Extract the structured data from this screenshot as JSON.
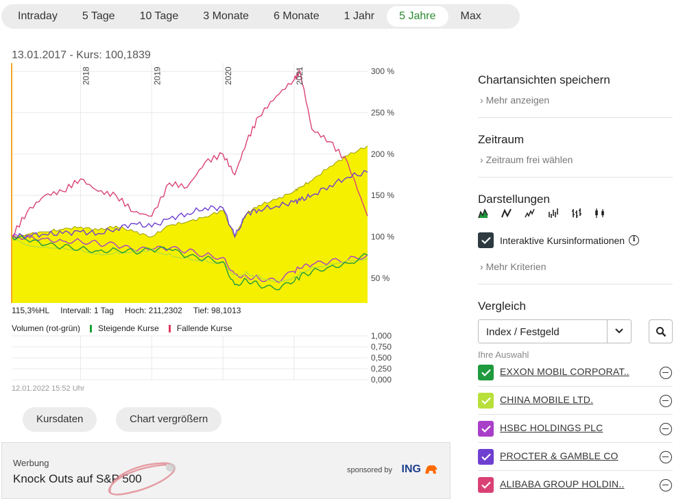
{
  "tabs": [
    {
      "label": "Intraday"
    },
    {
      "label": "5 Tage"
    },
    {
      "label": "10 Tage"
    },
    {
      "label": "3 Monate"
    },
    {
      "label": "6 Monate"
    },
    {
      "label": "1 Jahr"
    },
    {
      "label": "5 Jahre",
      "active": true
    },
    {
      "label": "Max"
    }
  ],
  "chart": {
    "header": "13.01.2017  -  Kurs: 100,1839",
    "stats": {
      "hl": "115,3%HL",
      "intervall": "Intervall: 1 Tag",
      "hoch": "Hoch: 211,2302",
      "tief": "Tief: 98,1013"
    },
    "volume_legend": {
      "label": "Volumen (rot-grün)",
      "rising": "Steigende Kurse",
      "falling": "Fallende Kurse",
      "rising_color": "#19a035",
      "falling_color": "#e0395a"
    },
    "timestamp": "12.01.2022 15:52 Uhr"
  },
  "chart_data": [
    {
      "type": "line",
      "years": [
        "2018",
        "2019",
        "2020",
        "2021"
      ],
      "y_ticks": [
        "300 %",
        "250 %",
        "200 %",
        "150 %",
        "100 %",
        "50 %"
      ],
      "ylim": [
        20,
        310
      ],
      "x": [
        "2017-01-13",
        "2017-04",
        "2017-07",
        "2017-10",
        "2018-01",
        "2018-04",
        "2018-07",
        "2018-10",
        "2019-01",
        "2019-04",
        "2019-07",
        "2019-10",
        "2020-01",
        "2020-03",
        "2020-05",
        "2020-07",
        "2020-10",
        "2021-01",
        "2021-02",
        "2021-04",
        "2021-07",
        "2021-10",
        "2022-01-12"
      ],
      "series": [
        {
          "color": "#f5f000",
          "values": [
            100,
            103,
            106,
            109,
            112,
            108,
            113,
            106,
            100,
            114,
            118,
            124,
            132,
            100,
            128,
            138,
            145,
            155,
            160,
            168,
            185,
            198,
            210
          ],
          "fill": true
        },
        {
          "color": "#d94175",
          "values": [
            100,
            130,
            150,
            155,
            170,
            155,
            150,
            130,
            125,
            165,
            160,
            190,
            200,
            175,
            215,
            245,
            270,
            290,
            300,
            230,
            215,
            190,
            125
          ]
        },
        {
          "color": "#6e3fd1",
          "values": [
            100,
            102,
            103,
            104,
            106,
            104,
            110,
            116,
            112,
            122,
            128,
            135,
            135,
            100,
            128,
            133,
            137,
            142,
            144,
            150,
            162,
            172,
            178
          ]
        },
        {
          "color": "#a93fc8",
          "values": [
            100,
            100,
            98,
            95,
            95,
            92,
            90,
            84,
            85,
            86,
            83,
            78,
            75,
            55,
            52,
            50,
            46,
            58,
            62,
            66,
            70,
            72,
            78
          ]
        },
        {
          "color": "#b8e03a",
          "values": [
            100,
            90,
            88,
            87,
            85,
            80,
            82,
            84,
            86,
            80,
            76,
            73,
            70,
            55,
            58,
            54,
            48,
            52,
            58,
            64,
            68,
            72,
            74
          ]
        },
        {
          "color": "#1f9a3e",
          "values": [
            100,
            96,
            90,
            88,
            86,
            83,
            85,
            82,
            84,
            85,
            76,
            74,
            70,
            42,
            48,
            42,
            36,
            46,
            52,
            58,
            64,
            68,
            78
          ]
        }
      ]
    },
    {
      "type": "bar",
      "y_ticks": [
        "1,000",
        "0,750",
        "0,500",
        "0,250",
        "0,000"
      ],
      "ylim": [
        0,
        1
      ],
      "values": []
    }
  ],
  "buttons": {
    "kursdaten": "Kursdaten",
    "vergroessern": "Chart vergrößern"
  },
  "ad": {
    "label": "Werbung",
    "title": "Knock Outs auf S&P 500",
    "sponsor": "sponsored by",
    "brand": "ING"
  },
  "panel": {
    "speichern_title": "Chartansichten speichern",
    "speichern_link": "Mehr anzeigen",
    "zeitraum_title": "Zeitraum",
    "zeitraum_link": "Zeitraum frei wählen",
    "darstellungen_title": "Darstellungen",
    "interaktiv_label": "Interaktive Kursinformationen",
    "mehr_kriterien": "Mehr Kriterien",
    "vergleich_title": "Vergleich",
    "select_value": "Index / Festgeld",
    "ihre_auswahl": "Ihre Auswahl",
    "comparisons": [
      {
        "name": "EXXON MOBIL CORPORAT..",
        "color": "#1f9a3e"
      },
      {
        "name": "CHINA MOBILE LTD.",
        "color": "#b8e03a"
      },
      {
        "name": "HSBC HOLDINGS PLC",
        "color": "#a93fc8"
      },
      {
        "name": "PROCTER & GAMBLE CO",
        "color": "#6e3fd1"
      },
      {
        "name": "ALIBABA GROUP HOLDIN..",
        "color": "#d94175"
      }
    ]
  }
}
